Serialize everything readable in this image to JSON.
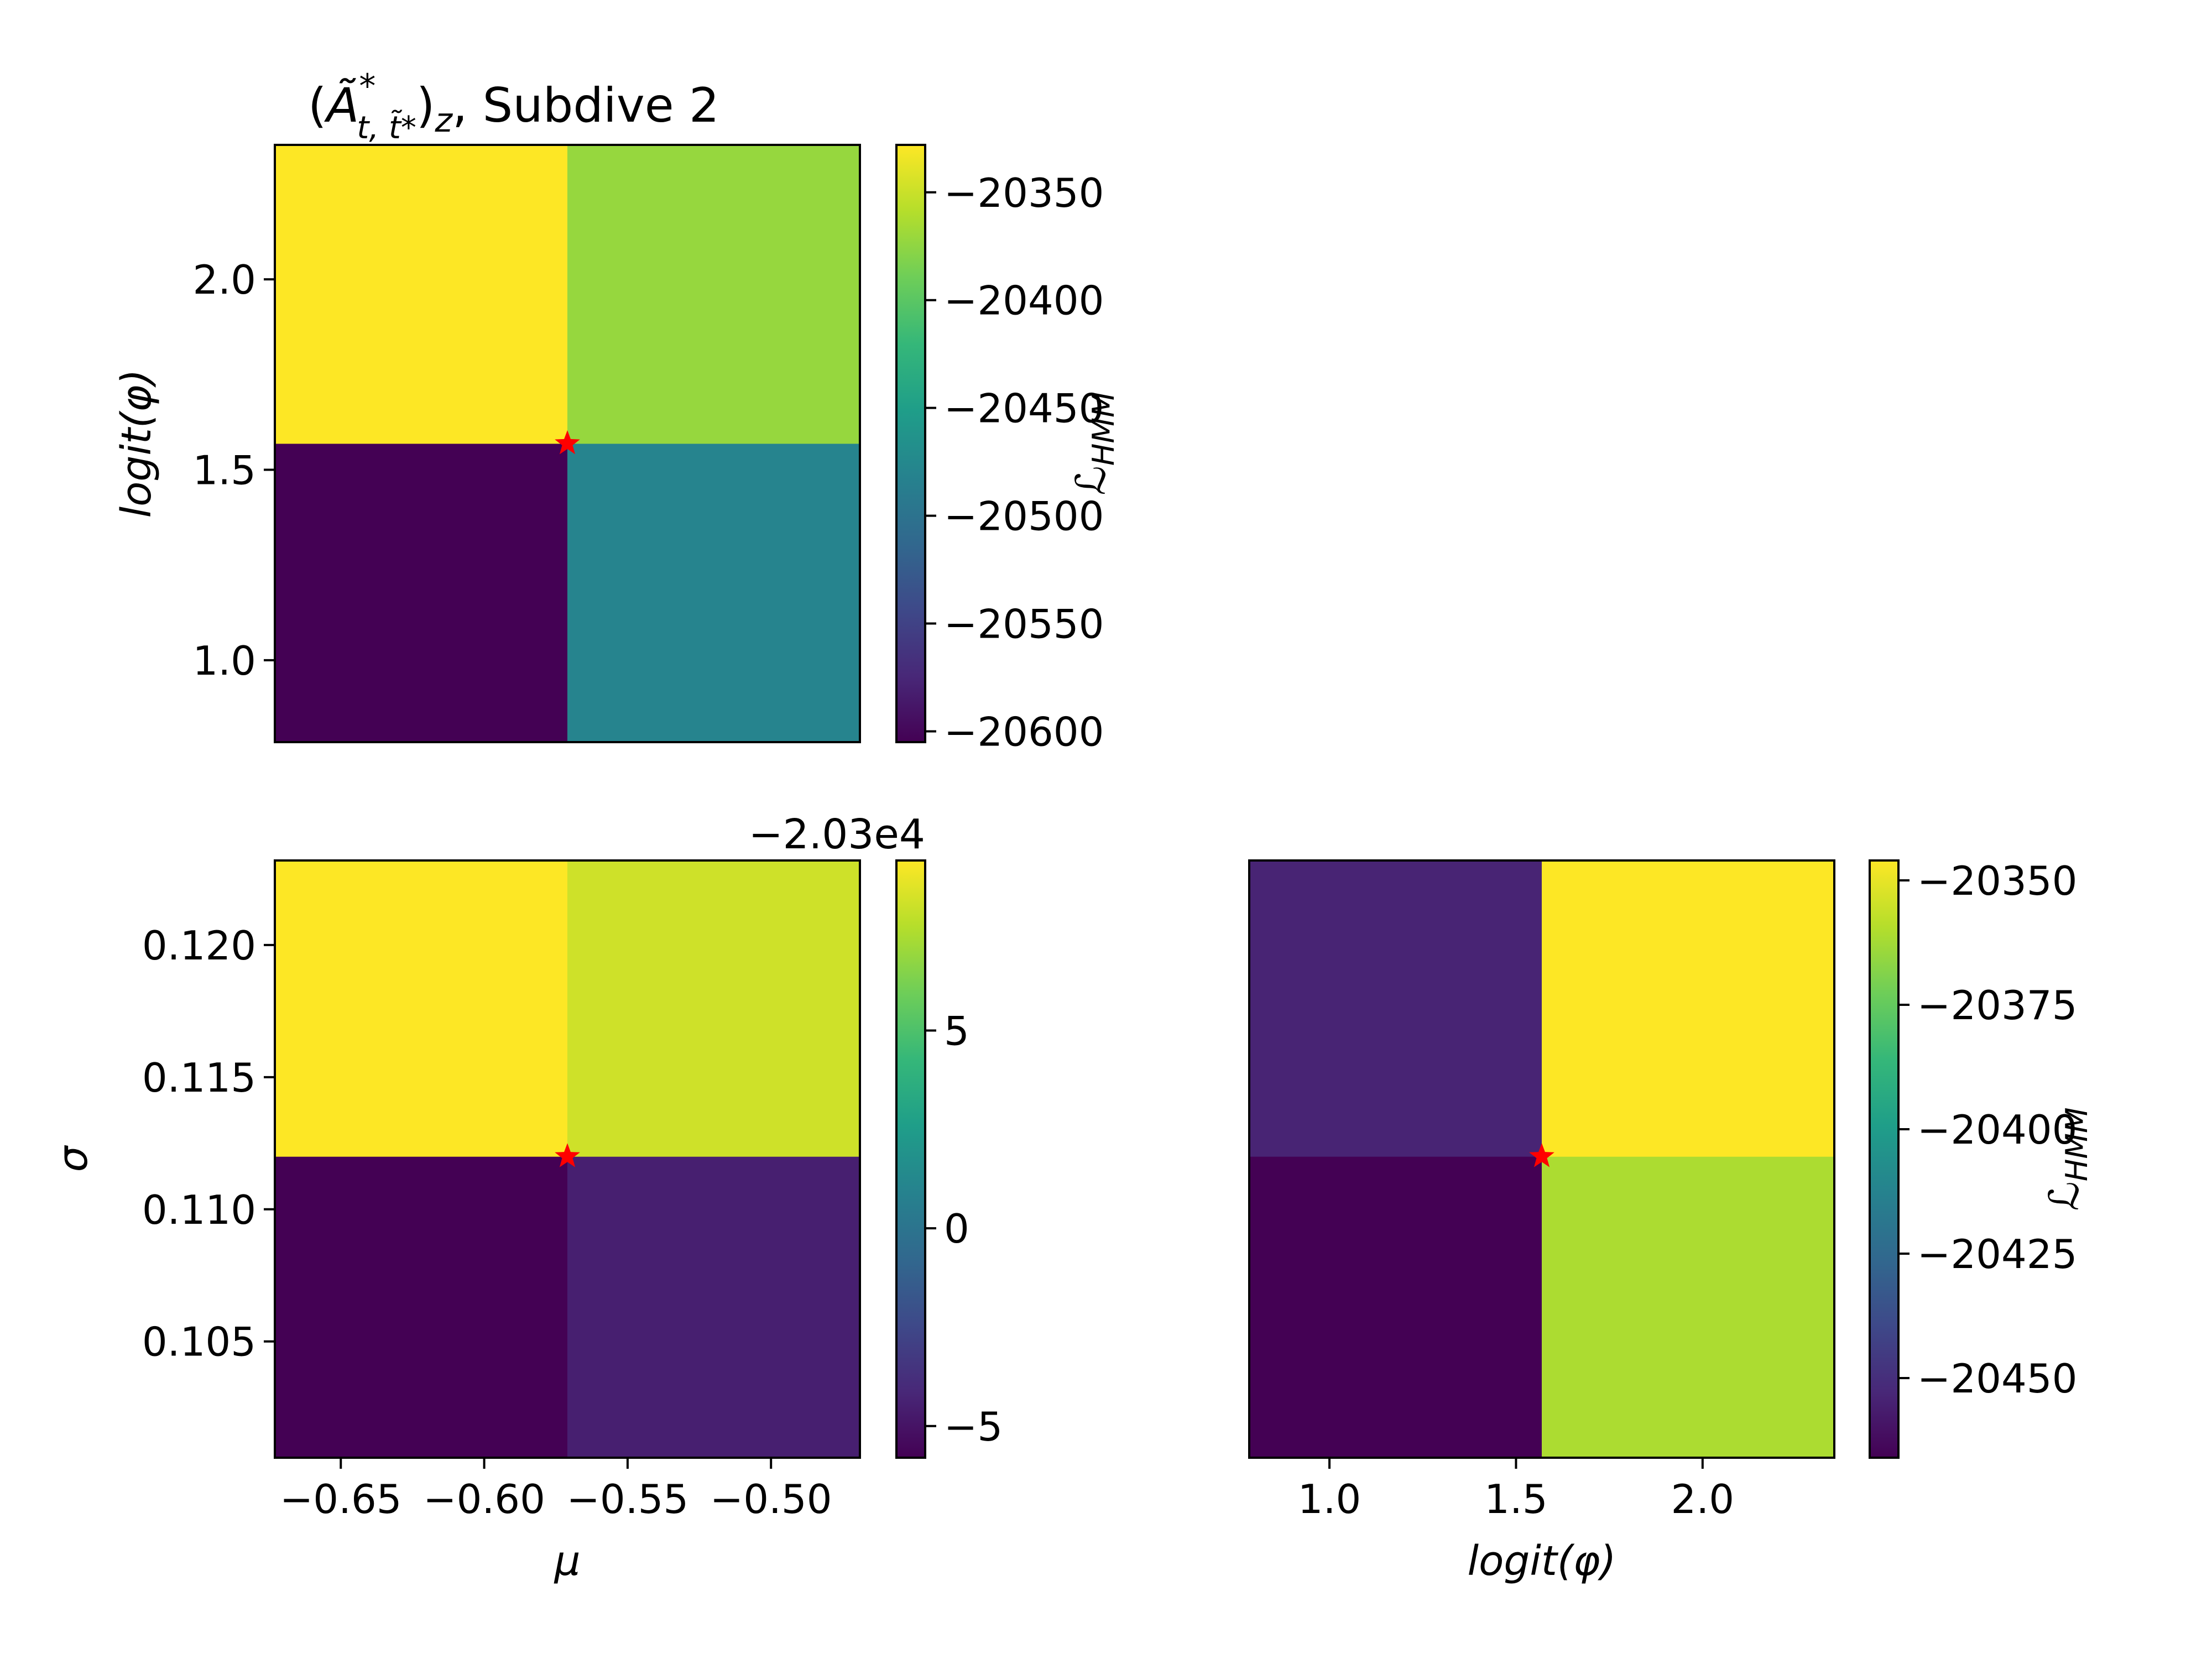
{
  "colormap": [
    "#440154",
    "#482878",
    "#3e4989",
    "#31688e",
    "#26828e",
    "#1f9e89",
    "#35b779",
    "#6ece58",
    "#b5de2b",
    "#fde725"
  ],
  "star_color": "#ff0000",
  "chart_data": [
    {
      "type": "heatmap",
      "panel": "top-left",
      "title": "(Ã*_{t, t̃*})_z, Subdive 2",
      "title_main": "Ã",
      "title_sup": "*",
      "title_sub": "t, t̃*",
      "title_outer_sub": "z",
      "title_suffix": ", Subdive 2",
      "xlabel": "",
      "ylabel": "logit(φ)",
      "x_edges": [
        -0.673,
        -0.571,
        -0.469
      ],
      "y_edges": [
        0.785,
        1.569,
        2.353
      ],
      "yticks": [
        1.0,
        1.5,
        2.0
      ],
      "ytick_labels": [
        "1.0",
        "1.5",
        "2.0"
      ],
      "cells": [
        {
          "x": 0,
          "y": 0,
          "value": -20605
        },
        {
          "x": 1,
          "y": 0,
          "value": -20480
        },
        {
          "x": 0,
          "y": 1,
          "value": -20328
        },
        {
          "x": 1,
          "y": 1,
          "value": -20372
        }
      ],
      "clim": [
        -20605,
        -20328
      ],
      "colorbar": {
        "label": "ℒ_HMM",
        "label_main": "ℒ",
        "label_sub": "HMM",
        "ticks": [
          -20600,
          -20550,
          -20500,
          -20450,
          -20400,
          -20350
        ],
        "tick_labels": [
          "−20600",
          "−20550",
          "−20500",
          "−20450",
          "−20400",
          "−20350"
        ]
      },
      "star": {
        "x": -0.571,
        "y": 1.569
      }
    },
    {
      "type": "heatmap",
      "panel": "bottom-left",
      "xlabel": "μ",
      "ylabel": "σ",
      "x_edges": [
        -0.673,
        -0.571,
        -0.469
      ],
      "y_edges": [
        0.1006,
        0.112,
        0.1232
      ],
      "xticks": [
        -0.65,
        -0.6,
        -0.55,
        -0.5
      ],
      "xtick_labels": [
        "−0.65",
        "−0.60",
        "−0.55",
        "−0.50"
      ],
      "yticks": [
        0.105,
        0.11,
        0.115,
        0.12
      ],
      "ytick_labels": [
        "0.105",
        "0.110",
        "0.115",
        "0.120"
      ],
      "cells": [
        {
          "x": 0,
          "y": 0,
          "value": -5.8
        },
        {
          "x": 1,
          "y": 0,
          "value": -4.5
        },
        {
          "x": 0,
          "y": 1,
          "value": 9.3
        },
        {
          "x": 1,
          "y": 1,
          "value": 8.2
        }
      ],
      "clim": [
        -5.8,
        9.3
      ],
      "colorbar": {
        "offset_text": "−2.03e4",
        "ticks": [
          -5,
          0,
          5
        ],
        "tick_labels": [
          "−5",
          "0",
          "5"
        ]
      },
      "star": {
        "x": -0.571,
        "y": 0.112
      }
    },
    {
      "type": "heatmap",
      "panel": "bottom-right",
      "xlabel": "logit(φ)",
      "ylabel": "",
      "x_edges": [
        0.785,
        1.569,
        2.353
      ],
      "y_edges": [
        0.1006,
        0.112,
        0.1232
      ],
      "xticks": [
        1.0,
        1.5,
        2.0
      ],
      "xtick_labels": [
        "1.0",
        "1.5",
        "2.0"
      ],
      "cells": [
        {
          "x": 0,
          "y": 0,
          "value": -20466
        },
        {
          "x": 1,
          "y": 0,
          "value": -20361
        },
        {
          "x": 0,
          "y": 1,
          "value": -20454
        },
        {
          "x": 1,
          "y": 1,
          "value": -20346
        }
      ],
      "clim": [
        -20466,
        -20346
      ],
      "colorbar": {
        "label": "ℒ_HMM",
        "label_main": "ℒ",
        "label_sub": "HMM",
        "ticks": [
          -20450,
          -20425,
          -20400,
          -20375,
          -20350
        ],
        "tick_labels": [
          "−20450",
          "−20425",
          "−20400",
          "−20375",
          "−20350"
        ]
      },
      "star": {
        "x": 1.569,
        "y": 0.112
      }
    }
  ]
}
